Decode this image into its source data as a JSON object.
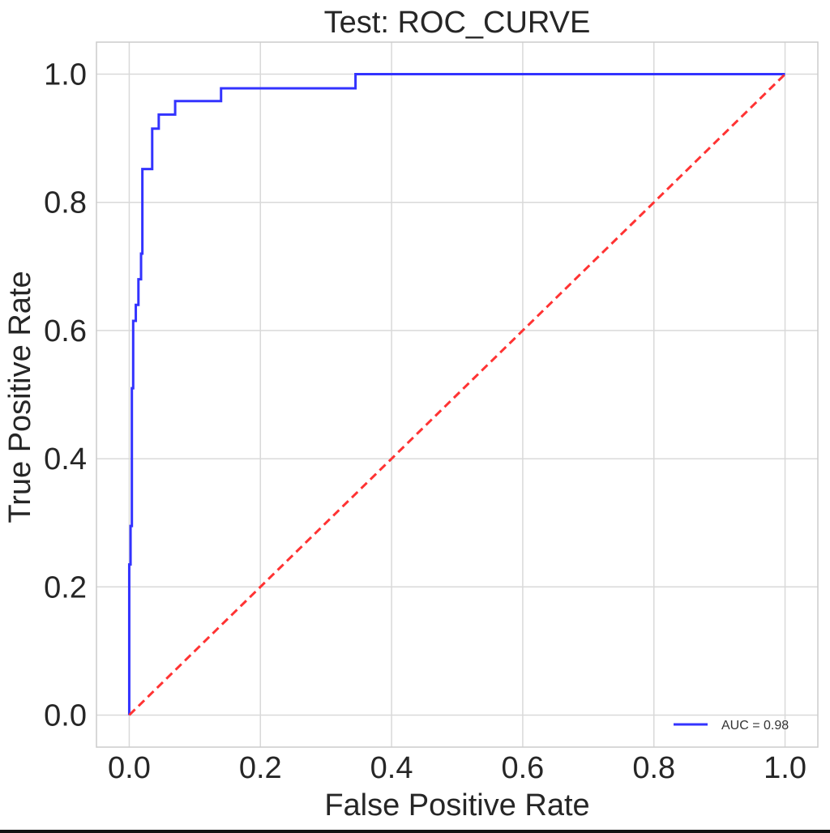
{
  "chart_data": {
    "type": "line",
    "title": "Test: ROC_CURVE",
    "xlabel": "False Positive Rate",
    "ylabel": "True Positive Rate",
    "xlim": [
      -0.05,
      1.05
    ],
    "ylim": [
      -0.05,
      1.05
    ],
    "xticks": [
      "0.0",
      "0.2",
      "0.4",
      "0.6",
      "0.8",
      "1.0"
    ],
    "yticks": [
      "0.0",
      "0.2",
      "0.4",
      "0.6",
      "0.8",
      "1.0"
    ],
    "grid": true,
    "legend": {
      "placement": "lower-right",
      "entries": [
        "AUC = 0.98"
      ]
    },
    "series": [
      {
        "name": "AUC = 0.98",
        "color": "#3333ff",
        "style": "solid",
        "x": [
          0,
          0,
          0.002,
          0.002,
          0.004,
          0.004,
          0.006,
          0.006,
          0.01,
          0.01,
          0.014,
          0.014,
          0.018,
          0.018,
          0.02,
          0.02,
          0.035,
          0.035,
          0.045,
          0.045,
          0.07,
          0.07,
          0.14,
          0.14,
          0.345,
          0.345,
          1.0
        ],
        "y": [
          0,
          0.235,
          0.235,
          0.295,
          0.295,
          0.51,
          0.51,
          0.615,
          0.615,
          0.64,
          0.64,
          0.68,
          0.68,
          0.72,
          0.72,
          0.852,
          0.852,
          0.915,
          0.915,
          0.937,
          0.937,
          0.958,
          0.958,
          0.978,
          0.978,
          1.0,
          1.0
        ]
      },
      {
        "name": "",
        "color": "#ff3333",
        "style": "dashed",
        "x": [
          0,
          1
        ],
        "y": [
          0,
          1
        ]
      }
    ]
  }
}
